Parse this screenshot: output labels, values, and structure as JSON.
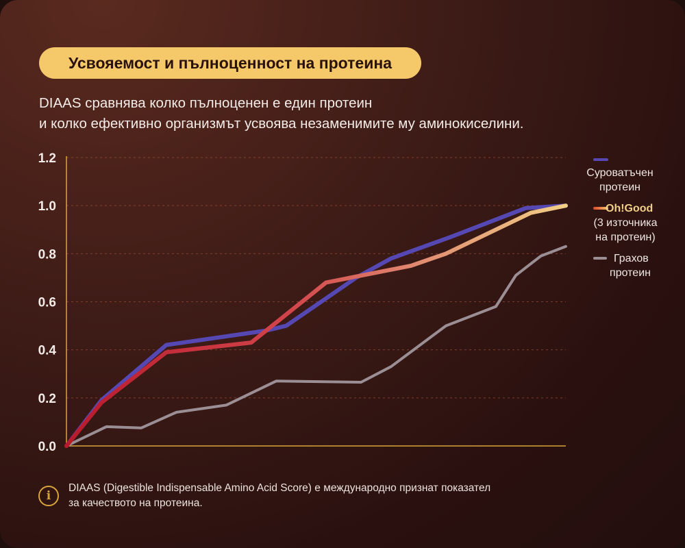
{
  "header": {
    "title": "Усвояемост и пълноценност на протеина",
    "subtitle_line1": "DIAAS сравнява колко пълноценен е един протеин",
    "subtitle_line2": "и колко ефективно организмът усвоява незаменимите му аминокиселини."
  },
  "footnote": {
    "line1": "DIAAS (Digestible Indispensable Amino Acid Score) е международно признат показател",
    "line2": "за качеството на протеина.",
    "icon": "info-icon"
  },
  "legend": [
    {
      "line1": "Суроватъчен",
      "line2": "протеин",
      "line3": ""
    },
    {
      "line1": "Oh!Good",
      "line2": "(3 източника",
      "line3": "на протеин)"
    },
    {
      "line1": "Грахов",
      "line2": "протеин",
      "line3": ""
    }
  ],
  "colors": {
    "whey": "#5648b3",
    "ohgood_start": "#b81a2c",
    "ohgood_end": "#f2cf86",
    "pea": "#9b8f95",
    "axis": "#d7a53a",
    "ohgood_label": "#f2cf86"
  },
  "chart_data": {
    "type": "line",
    "ylim": [
      0,
      1.2
    ],
    "yticks": [
      "0.0",
      "0.2",
      "0.4",
      "0.6",
      "0.8",
      "1.0",
      "1.2"
    ],
    "xlim": [
      0,
      1
    ],
    "grid": true,
    "legend_position": "right",
    "series": [
      {
        "name": "Суроватъчен протеин",
        "x": [
          0,
          0.07,
          0.2,
          0.4,
          0.44,
          0.58,
          0.65,
          0.77,
          0.92,
          1.0
        ],
        "y": [
          0,
          0.19,
          0.42,
          0.48,
          0.5,
          0.7,
          0.78,
          0.87,
          0.99,
          1.0
        ]
      },
      {
        "name": "Oh!Good (3 източника на протеин)",
        "x": [
          0,
          0.07,
          0.2,
          0.37,
          0.52,
          0.69,
          0.76,
          0.93,
          1.0
        ],
        "y": [
          0,
          0.18,
          0.39,
          0.43,
          0.68,
          0.75,
          0.8,
          0.97,
          1.0
        ]
      },
      {
        "name": "Грахов протеин",
        "x": [
          0,
          0.08,
          0.15,
          0.22,
          0.32,
          0.42,
          0.59,
          0.65,
          0.76,
          0.86,
          0.9,
          0.95,
          1.0
        ],
        "y": [
          0,
          0.08,
          0.075,
          0.14,
          0.17,
          0.27,
          0.265,
          0.33,
          0.5,
          0.58,
          0.71,
          0.79,
          0.83
        ]
      }
    ]
  }
}
